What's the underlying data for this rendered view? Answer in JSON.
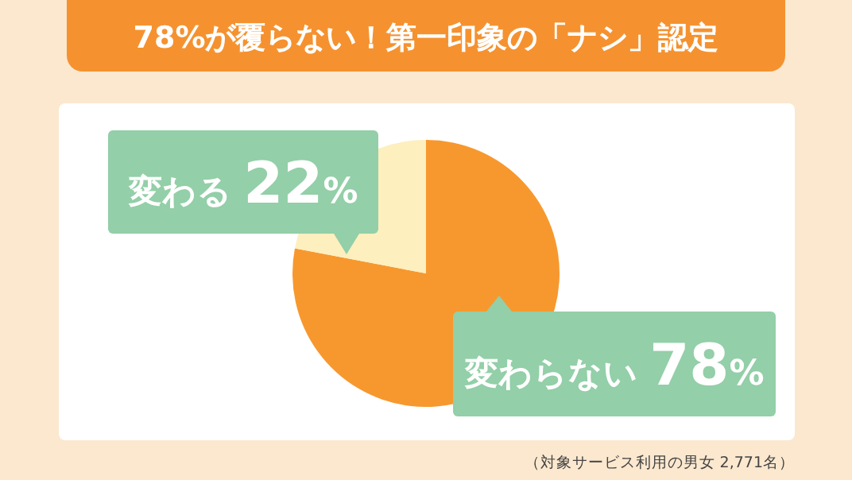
{
  "chart_data": {
    "type": "pie",
    "title": "78%が覆らない！第一印象の「ナシ」認定",
    "categories": [
      "変わらない",
      "変わる"
    ],
    "values": [
      78,
      22
    ],
    "value_labels": [
      "78%",
      "22%"
    ],
    "colors": [
      "#f7982e",
      "#fdefbe"
    ],
    "annotations": [
      "（対象サービス利用の男女 2,771名）"
    ]
  }
}
